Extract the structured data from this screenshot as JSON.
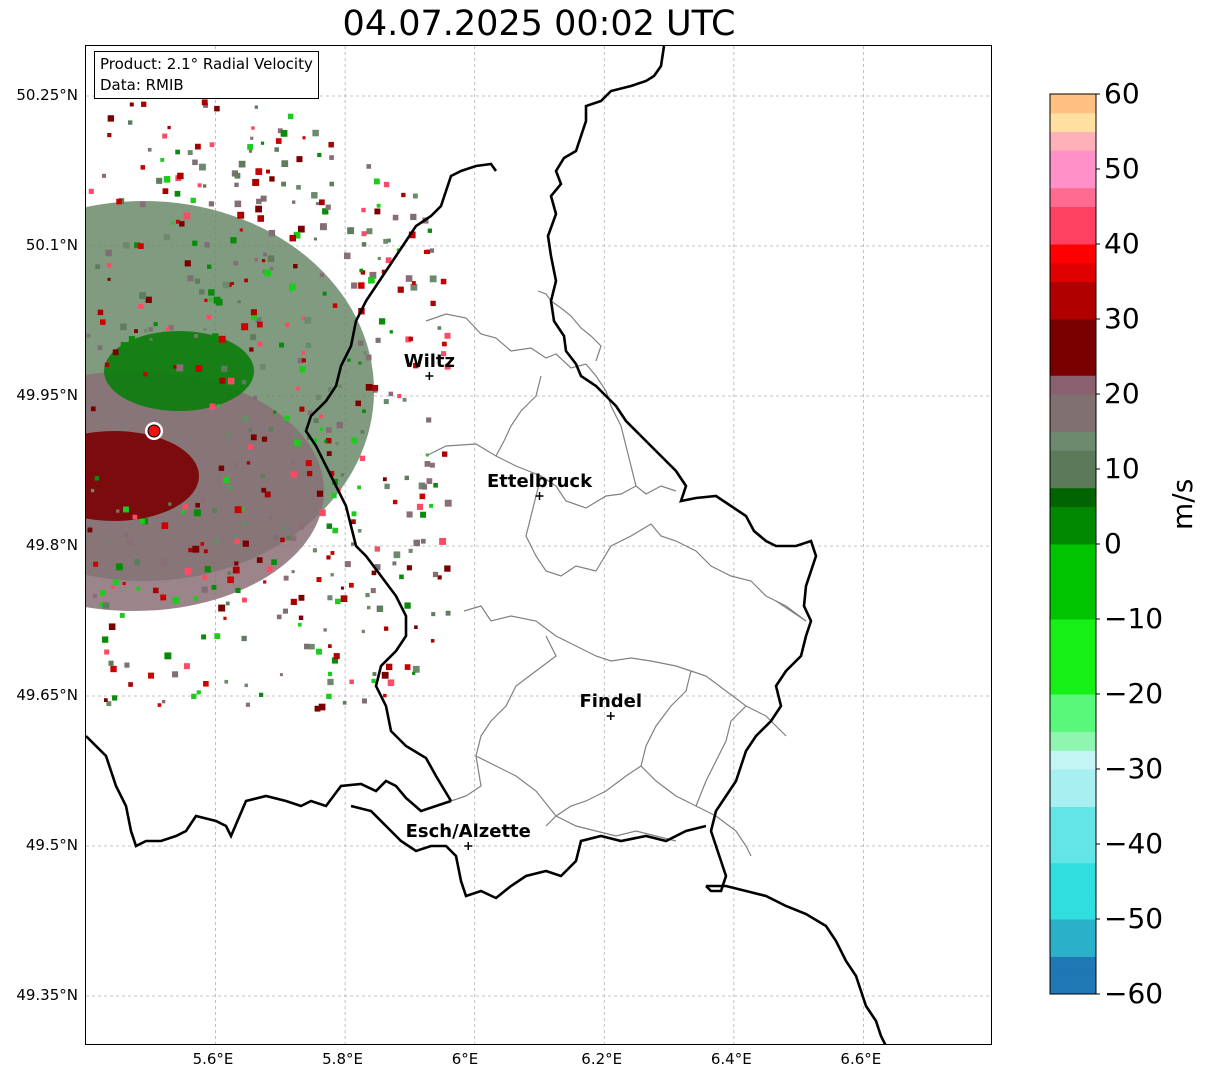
{
  "title": "04.07.2025 00:02 UTC",
  "info": {
    "product": "Product: 2.1° Radial Velocity",
    "data": "Data: RMIB"
  },
  "map": {
    "lon_range": [
      5.4,
      6.8
    ],
    "lat_range": [
      49.3,
      50.3
    ],
    "lon_ticks": [
      "5.6°E",
      "5.8°E",
      "6°E",
      "6.2°E",
      "6.4°E",
      "6.6°E"
    ],
    "lat_ticks": [
      "50.25°N",
      "50.1°N",
      "49.95°N",
      "49.8°N",
      "49.65°N",
      "49.5°N",
      "49.35°N"
    ],
    "gridlines": true,
    "cities": [
      {
        "name": "Wiltz",
        "lon": 5.93,
        "lat": 49.97
      },
      {
        "name": "Ettelbruck",
        "lon": 6.1,
        "lat": 49.85
      },
      {
        "name": "Findel",
        "lon": 6.21,
        "lat": 49.63
      },
      {
        "name": "Esch/Alzette",
        "lon": 5.99,
        "lat": 49.5
      }
    ],
    "radar_site": {
      "lon": 5.505,
      "lat": 49.915
    }
  },
  "colorbar": {
    "label": "m/s",
    "ticks": [
      "60",
      "50",
      "40",
      "30",
      "20",
      "10",
      "0",
      "−10",
      "−20",
      "−30",
      "−40",
      "−50",
      "−60"
    ],
    "range": [
      -60,
      60
    ]
  }
}
